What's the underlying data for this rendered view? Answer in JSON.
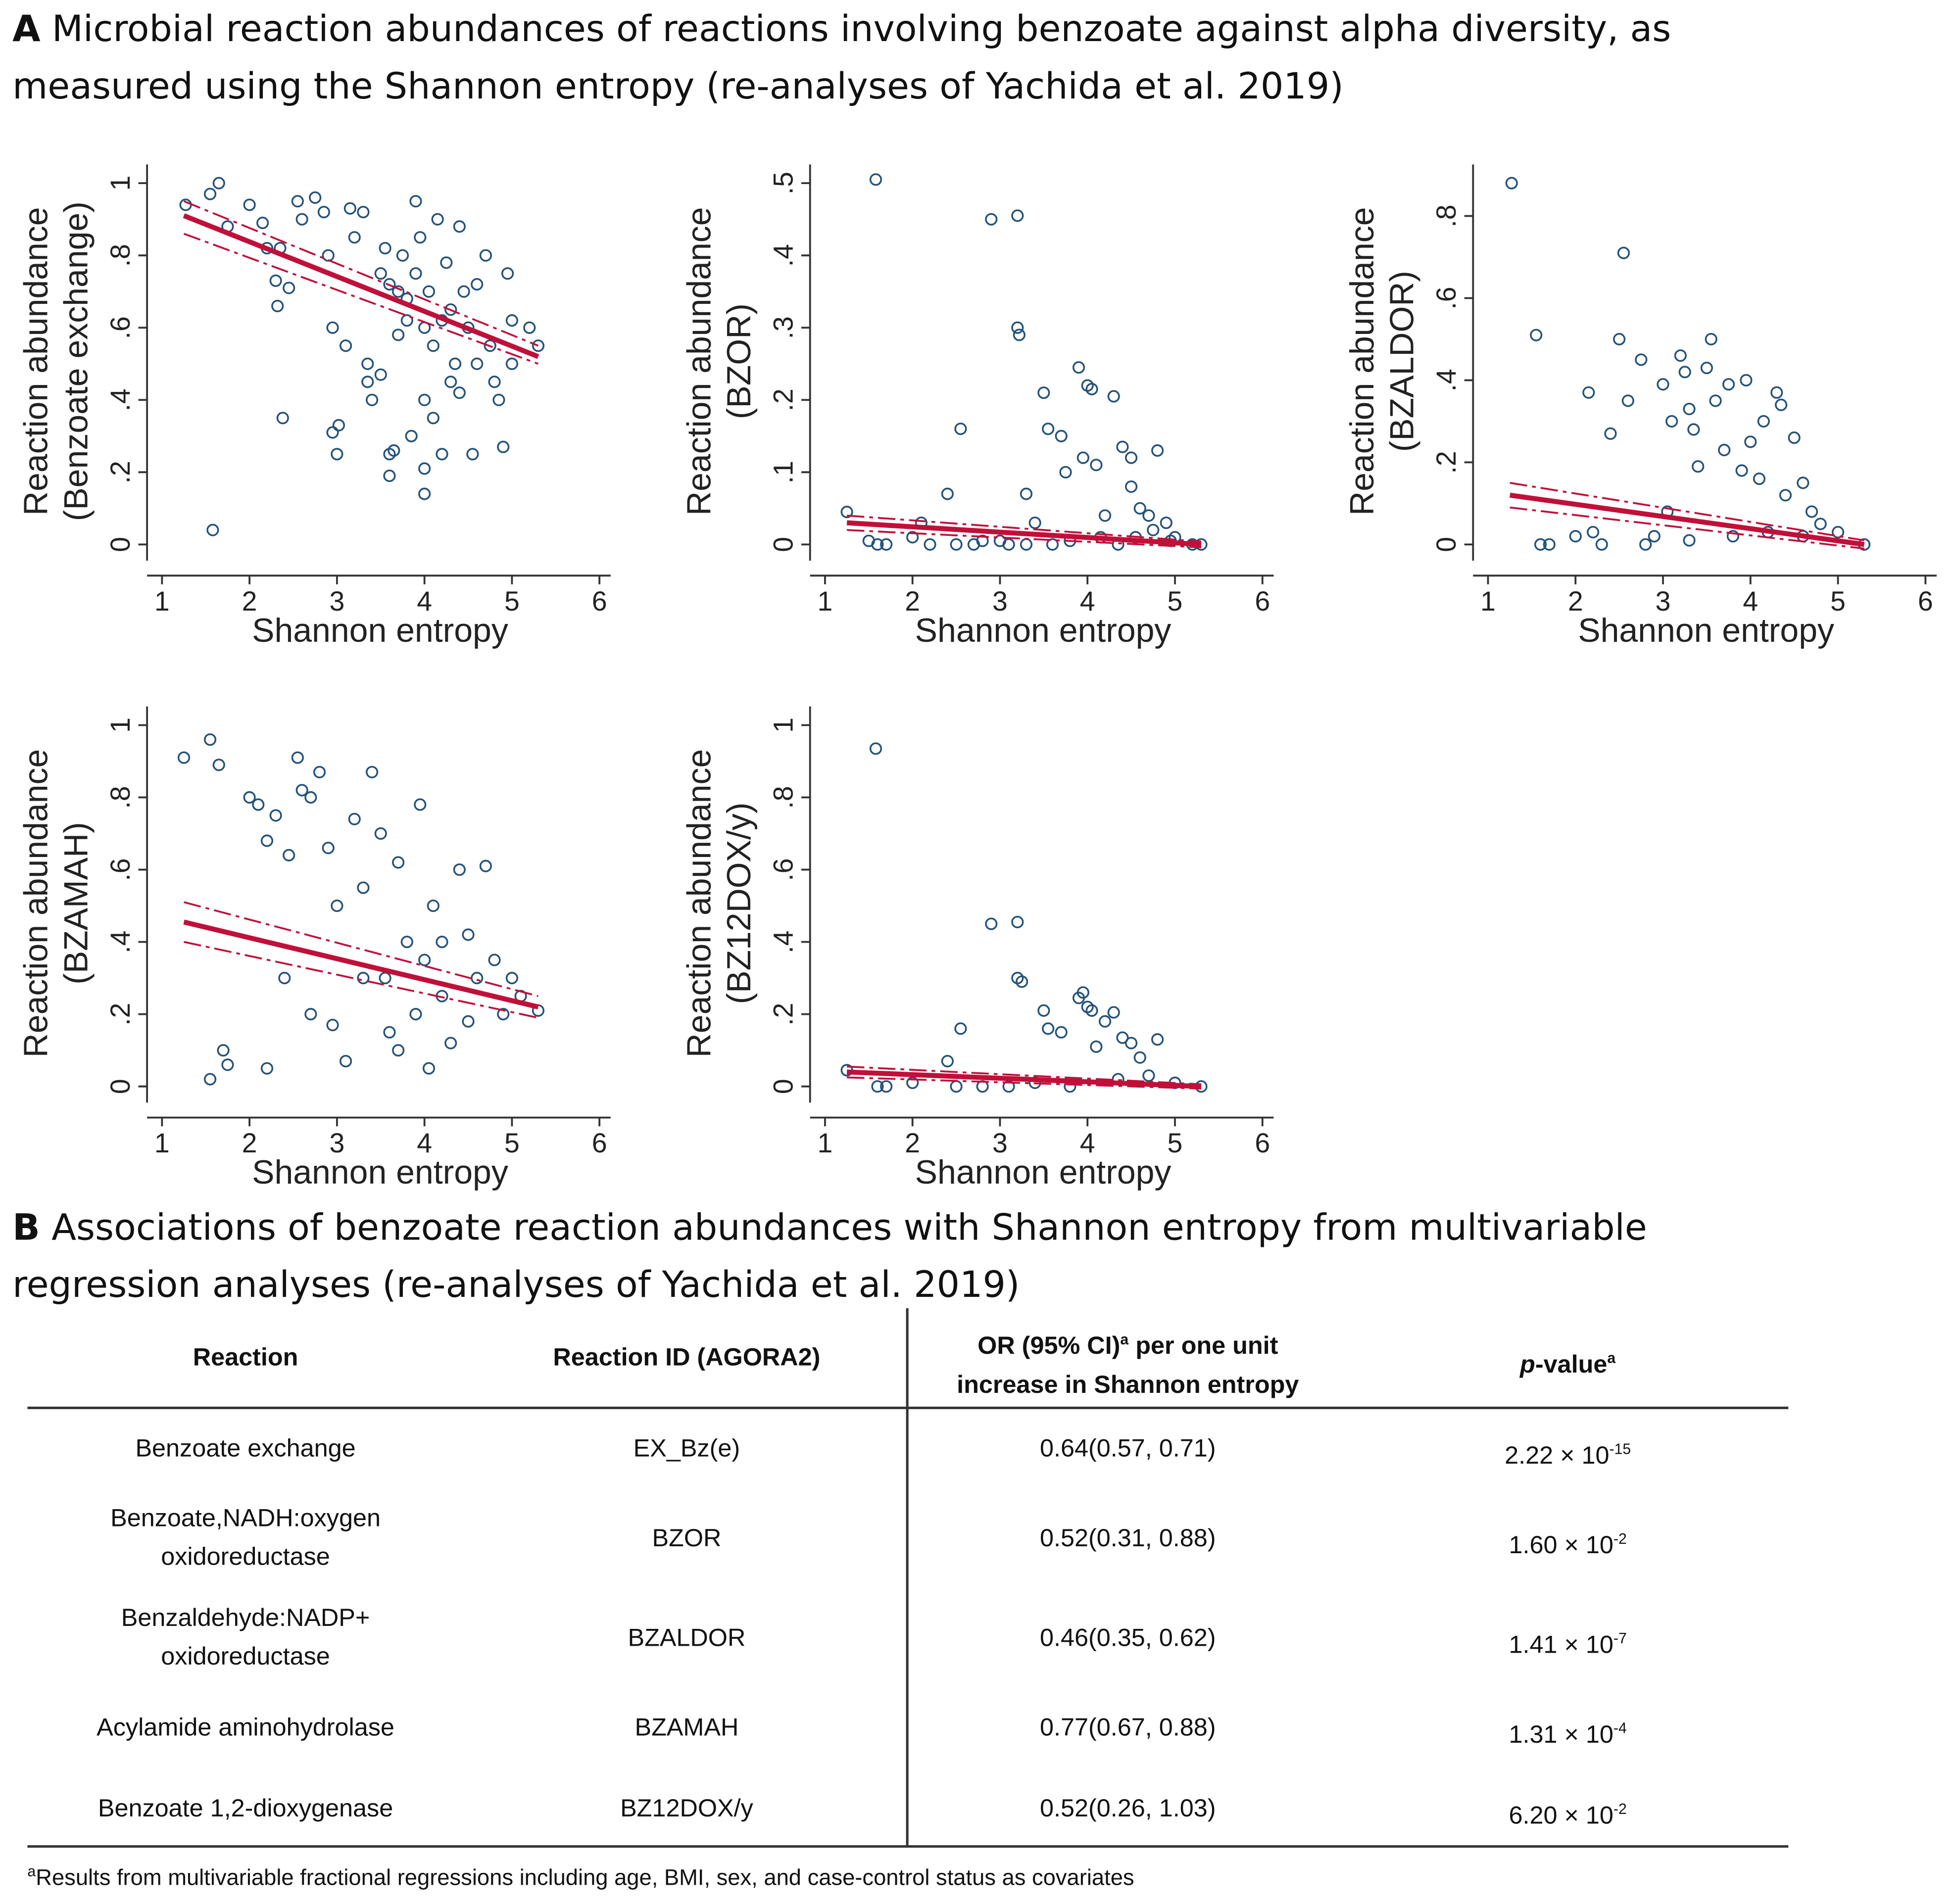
{
  "panel_a": {
    "letter": "A",
    "title_line1": "Microbial reaction abundances of reactions involving benzoate against alpha diversity, as",
    "title_line2": "measured using the Shannon entropy (re-analyses of Yachida et al. 2019)"
  },
  "panel_b": {
    "letter": "B",
    "title_line1": "Associations of benzoate reaction abundances with Shannon entropy from multivariable",
    "title_line2": "regression analyses (re-analyses of Yachida et al. 2019)"
  },
  "colors": {
    "points": "#24527a",
    "fit": "#c0103a"
  },
  "chart_data": [
    {
      "type": "scatter",
      "xlabel": "Shannon entropy",
      "ylabel1": "Reaction abundance",
      "ylabel2": "(Benzoate exchange)",
      "xlim": [
        1,
        6
      ],
      "xticks": [
        "1",
        "2",
        "3",
        "4",
        "5",
        "6"
      ],
      "ylim": [
        0,
        1
      ],
      "yticks": [
        0,
        0.2,
        0.4,
        0.6,
        0.8,
        1
      ],
      "ytick_labels": [
        "0",
        ".2",
        ".4",
        ".6",
        ".8",
        "1"
      ],
      "fit": {
        "x": [
          1.25,
          5.3
        ],
        "y": [
          0.91,
          0.52
        ],
        "ci_upper": [
          0.95,
          0.55
        ],
        "ci_lower": [
          0.86,
          0.5
        ]
      },
      "points": [
        [
          1.27,
          0.94
        ],
        [
          1.55,
          0.97
        ],
        [
          1.65,
          1.0
        ],
        [
          1.58,
          0.04
        ],
        [
          1.75,
          0.88
        ],
        [
          2.0,
          0.94
        ],
        [
          2.15,
          0.89
        ],
        [
          2.2,
          0.82
        ],
        [
          2.3,
          0.73
        ],
        [
          2.32,
          0.66
        ],
        [
          2.38,
          0.35
        ],
        [
          2.35,
          0.82
        ],
        [
          2.45,
          0.71
        ],
        [
          2.55,
          0.95
        ],
        [
          2.6,
          0.9
        ],
        [
          2.75,
          0.96
        ],
        [
          2.85,
          0.92
        ],
        [
          2.9,
          0.8
        ],
        [
          2.95,
          0.6
        ],
        [
          2.95,
          0.31
        ],
        [
          3.0,
          0.25
        ],
        [
          3.02,
          0.33
        ],
        [
          3.1,
          0.55
        ],
        [
          3.15,
          0.93
        ],
        [
          3.2,
          0.85
        ],
        [
          3.3,
          0.92
        ],
        [
          3.35,
          0.5
        ],
        [
          3.35,
          0.45
        ],
        [
          3.4,
          0.4
        ],
        [
          3.5,
          0.47
        ],
        [
          3.5,
          0.75
        ],
        [
          3.6,
          0.25
        ],
        [
          3.6,
          0.19
        ],
        [
          3.65,
          0.26
        ],
        [
          3.7,
          0.7
        ],
        [
          3.75,
          0.8
        ],
        [
          3.8,
          0.62
        ],
        [
          3.85,
          0.3
        ],
        [
          3.9,
          0.95
        ],
        [
          3.9,
          0.75
        ],
        [
          3.95,
          0.85
        ],
        [
          4.0,
          0.14
        ],
        [
          4.0,
          0.21
        ],
        [
          4.0,
          0.6
        ],
        [
          4.05,
          0.7
        ],
        [
          4.1,
          0.55
        ],
        [
          4.1,
          0.35
        ],
        [
          4.15,
          0.9
        ],
        [
          4.2,
          0.25
        ],
        [
          4.25,
          0.78
        ],
        [
          4.3,
          0.65
        ],
        [
          4.35,
          0.5
        ],
        [
          4.4,
          0.88
        ],
        [
          4.4,
          0.42
        ],
        [
          4.5,
          0.6
        ],
        [
          4.55,
          0.25
        ],
        [
          4.6,
          0.72
        ],
        [
          4.7,
          0.8
        ],
        [
          4.75,
          0.55
        ],
        [
          4.8,
          0.45
        ],
        [
          4.85,
          0.4
        ],
        [
          4.9,
          0.27
        ],
        [
          4.95,
          0.75
        ],
        [
          5.0,
          0.62
        ],
        [
          5.0,
          0.5
        ],
        [
          5.2,
          0.6
        ],
        [
          5.3,
          0.55
        ],
        [
          3.6,
          0.72
        ],
        [
          3.7,
          0.58
        ],
        [
          3.8,
          0.68
        ],
        [
          4.2,
          0.62
        ],
        [
          4.3,
          0.45
        ],
        [
          4.45,
          0.7
        ],
        [
          3.55,
          0.82
        ],
        [
          4.6,
          0.5
        ],
        [
          4.0,
          0.4
        ]
      ]
    },
    {
      "type": "scatter",
      "xlabel": "Shannon entropy",
      "ylabel1": "Reaction abundance",
      "ylabel2": "(BZOR)",
      "xlim": [
        1,
        6
      ],
      "xticks": [
        "1",
        "2",
        "3",
        "4",
        "5",
        "6"
      ],
      "ylim": [
        0,
        0.5
      ],
      "yticks": [
        0,
        0.1,
        0.2,
        0.3,
        0.4,
        0.5
      ],
      "ytick_labels": [
        "0",
        ".1",
        ".2",
        ".3",
        ".4",
        ".5"
      ],
      "fit": {
        "x": [
          1.25,
          5.3
        ],
        "y": [
          0.03,
          0.0
        ],
        "ci_upper": [
          0.04,
          0.004
        ],
        "ci_lower": [
          0.02,
          -0.004
        ]
      },
      "points": [
        [
          1.25,
          0.045
        ],
        [
          1.5,
          0.005
        ],
        [
          1.58,
          0.505
        ],
        [
          1.6,
          0
        ],
        [
          1.7,
          0
        ],
        [
          2.0,
          0.01
        ],
        [
          2.1,
          0.03
        ],
        [
          2.2,
          0
        ],
        [
          2.4,
          0.07
        ],
        [
          2.55,
          0.16
        ],
        [
          2.9,
          0.45
        ],
        [
          3.0,
          0.005
        ],
        [
          3.2,
          0.455
        ],
        [
          3.2,
          0.3
        ],
        [
          3.22,
          0.29
        ],
        [
          3.3,
          0.07
        ],
        [
          3.4,
          0.03
        ],
        [
          3.5,
          0.21
        ],
        [
          3.55,
          0.16
        ],
        [
          3.7,
          0.15
        ],
        [
          3.75,
          0.1
        ],
        [
          3.9,
          0.245
        ],
        [
          3.95,
          0.12
        ],
        [
          4.0,
          0.22
        ],
        [
          4.05,
          0.215
        ],
        [
          4.1,
          0.11
        ],
        [
          4.2,
          0.04
        ],
        [
          4.3,
          0.205
        ],
        [
          4.4,
          0.135
        ],
        [
          4.5,
          0.12
        ],
        [
          4.5,
          0.08
        ],
        [
          4.6,
          0.05
        ],
        [
          4.7,
          0.04
        ],
        [
          4.8,
          0.13
        ],
        [
          4.9,
          0.03
        ],
        [
          5.0,
          0.01
        ],
        [
          5.2,
          0
        ],
        [
          5.3,
          0
        ],
        [
          2.5,
          0
        ],
        [
          2.7,
          0
        ],
        [
          2.8,
          0.005
        ],
        [
          3.1,
          0
        ],
        [
          3.3,
          0
        ],
        [
          3.6,
          0
        ],
        [
          3.8,
          0.005
        ],
        [
          4.15,
          0.01
        ],
        [
          4.35,
          0
        ],
        [
          4.55,
          0.01
        ],
        [
          4.75,
          0.02
        ],
        [
          4.95,
          0.005
        ]
      ]
    },
    {
      "type": "scatter",
      "xlabel": "Shannon entropy",
      "ylabel1": "Reaction abundance",
      "ylabel2": "(BZALDOR)",
      "xlim": [
        1,
        6
      ],
      "xticks": [
        "1",
        "2",
        "3",
        "4",
        "5",
        "6"
      ],
      "ylim": [
        0,
        0.88
      ],
      "yticks": [
        0,
        0.2,
        0.4,
        0.6,
        0.8
      ],
      "ytick_labels": [
        "0",
        ".2",
        ".4",
        ".6",
        ".8"
      ],
      "fit": {
        "x": [
          1.25,
          5.3
        ],
        "y": [
          0.12,
          0.0
        ],
        "ci_upper": [
          0.15,
          0.01
        ],
        "ci_lower": [
          0.09,
          -0.01
        ]
      },
      "points": [
        [
          1.27,
          0.88
        ],
        [
          1.55,
          0.51
        ],
        [
          1.6,
          0
        ],
        [
          1.7,
          0
        ],
        [
          2.0,
          0.02
        ],
        [
          2.15,
          0.37
        ],
        [
          2.2,
          0.03
        ],
        [
          2.4,
          0.27
        ],
        [
          2.5,
          0.5
        ],
        [
          2.55,
          0.71
        ],
        [
          2.6,
          0.35
        ],
        [
          2.75,
          0.45
        ],
        [
          2.9,
          0.02
        ],
        [
          3.0,
          0.39
        ],
        [
          3.05,
          0.08
        ],
        [
          3.1,
          0.3
        ],
        [
          3.2,
          0.46
        ],
        [
          3.25,
          0.42
        ],
        [
          3.3,
          0.33
        ],
        [
          3.35,
          0.28
        ],
        [
          3.4,
          0.19
        ],
        [
          3.5,
          0.43
        ],
        [
          3.55,
          0.5
        ],
        [
          3.6,
          0.35
        ],
        [
          3.7,
          0.23
        ],
        [
          3.75,
          0.39
        ],
        [
          3.9,
          0.18
        ],
        [
          3.95,
          0.4
        ],
        [
          4.0,
          0.25
        ],
        [
          4.1,
          0.16
        ],
        [
          4.15,
          0.3
        ],
        [
          4.3,
          0.37
        ],
        [
          4.35,
          0.34
        ],
        [
          4.4,
          0.12
        ],
        [
          4.5,
          0.26
        ],
        [
          4.6,
          0.15
        ],
        [
          4.7,
          0.08
        ],
        [
          4.8,
          0.05
        ],
        [
          5.0,
          0.03
        ],
        [
          5.3,
          0
        ],
        [
          2.3,
          0
        ],
        [
          2.8,
          0
        ],
        [
          3.3,
          0.01
        ],
        [
          3.8,
          0.02
        ],
        [
          4.2,
          0.03
        ],
        [
          4.6,
          0.02
        ]
      ]
    },
    {
      "type": "scatter",
      "xlabel": "Shannon entropy",
      "ylabel1": "Reaction abundance",
      "ylabel2": "(BZAMAH)",
      "xlim": [
        1,
        6
      ],
      "xticks": [
        "1",
        "2",
        "3",
        "4",
        "5",
        "6"
      ],
      "ylim": [
        0,
        1
      ],
      "yticks": [
        0,
        0.2,
        0.4,
        0.6,
        0.8,
        1
      ],
      "ytick_labels": [
        "0",
        ".2",
        ".4",
        ".6",
        ".8",
        "1"
      ],
      "fit": {
        "x": [
          1.25,
          5.3
        ],
        "y": [
          0.455,
          0.22
        ],
        "ci_upper": [
          0.51,
          0.25
        ],
        "ci_lower": [
          0.4,
          0.19
        ]
      },
      "points": [
        [
          1.25,
          0.91
        ],
        [
          1.55,
          0.96
        ],
        [
          1.65,
          0.89
        ],
        [
          1.55,
          0.02
        ],
        [
          1.7,
          0.1
        ],
        [
          1.75,
          0.06
        ],
        [
          2.0,
          0.8
        ],
        [
          2.1,
          0.78
        ],
        [
          2.2,
          0.68
        ],
        [
          2.2,
          0.05
        ],
        [
          2.3,
          0.75
        ],
        [
          2.4,
          0.3
        ],
        [
          2.45,
          0.64
        ],
        [
          2.55,
          0.91
        ],
        [
          2.6,
          0.82
        ],
        [
          2.7,
          0.8
        ],
        [
          2.8,
          0.87
        ],
        [
          2.9,
          0.66
        ],
        [
          2.95,
          0.17
        ],
        [
          3.0,
          0.5
        ],
        [
          3.1,
          0.07
        ],
        [
          3.2,
          0.74
        ],
        [
          3.3,
          0.55
        ],
        [
          3.4,
          0.87
        ],
        [
          3.5,
          0.7
        ],
        [
          3.55,
          0.3
        ],
        [
          3.6,
          0.15
        ],
        [
          3.7,
          0.62
        ],
        [
          3.8,
          0.4
        ],
        [
          3.9,
          0.2
        ],
        [
          3.95,
          0.78
        ],
        [
          4.0,
          0.35
        ],
        [
          4.05,
          0.05
        ],
        [
          4.1,
          0.5
        ],
        [
          4.2,
          0.25
        ],
        [
          4.3,
          0.12
        ],
        [
          4.4,
          0.6
        ],
        [
          4.5,
          0.42
        ],
        [
          4.6,
          0.3
        ],
        [
          4.7,
          0.61
        ],
        [
          4.8,
          0.35
        ],
        [
          4.9,
          0.2
        ],
        [
          5.0,
          0.3
        ],
        [
          5.1,
          0.25
        ],
        [
          5.3,
          0.21
        ],
        [
          3.7,
          0.1
        ],
        [
          4.2,
          0.4
        ],
        [
          4.5,
          0.18
        ],
        [
          3.3,
          0.3
        ],
        [
          2.7,
          0.2
        ]
      ]
    },
    {
      "type": "scatter",
      "xlabel": "Shannon entropy",
      "ylabel1": "Reaction abundance",
      "ylabel2": "(BZ12DOX/y)",
      "xlim": [
        1,
        6
      ],
      "xticks": [
        "1",
        "2",
        "3",
        "4",
        "5",
        "6"
      ],
      "ylim": [
        0,
        1
      ],
      "yticks": [
        0,
        0.2,
        0.4,
        0.6,
        0.8,
        1
      ],
      "ytick_labels": [
        "0",
        ".2",
        ".4",
        ".6",
        ".8",
        "1"
      ],
      "fit": {
        "x": [
          1.25,
          5.3
        ],
        "y": [
          0.04,
          0.0
        ],
        "ci_upper": [
          0.055,
          0.006
        ],
        "ci_lower": [
          0.025,
          -0.006
        ]
      },
      "points": [
        [
          1.25,
          0.045
        ],
        [
          1.58,
          0.935
        ],
        [
          1.6,
          0
        ],
        [
          1.7,
          0
        ],
        [
          2.0,
          0.01
        ],
        [
          2.4,
          0.07
        ],
        [
          2.55,
          0.16
        ],
        [
          2.9,
          0.45
        ],
        [
          3.2,
          0.455
        ],
        [
          3.2,
          0.3
        ],
        [
          3.25,
          0.29
        ],
        [
          3.5,
          0.21
        ],
        [
          3.55,
          0.16
        ],
        [
          3.7,
          0.15
        ],
        [
          3.9,
          0.245
        ],
        [
          3.95,
          0.26
        ],
        [
          4.0,
          0.22
        ],
        [
          4.05,
          0.21
        ],
        [
          4.1,
          0.11
        ],
        [
          4.2,
          0.18
        ],
        [
          4.3,
          0.205
        ],
        [
          4.4,
          0.135
        ],
        [
          4.5,
          0.12
        ],
        [
          4.6,
          0.08
        ],
        [
          4.8,
          0.13
        ],
        [
          5.0,
          0.01
        ],
        [
          5.3,
          0
        ],
        [
          2.5,
          0
        ],
        [
          2.8,
          0
        ],
        [
          3.1,
          0
        ],
        [
          3.4,
          0.01
        ],
        [
          3.8,
          0
        ],
        [
          4.35,
          0.02
        ],
        [
          4.7,
          0.03
        ]
      ]
    }
  ],
  "table": {
    "headers": {
      "reaction": "Reaction",
      "reaction_id": "Reaction ID (AGORA2)",
      "or_line1": "OR (95% CI)",
      "or_sup": "a",
      "or_line1b": " per one unit",
      "or_line2": "increase in Shannon entropy",
      "p_italic": "p",
      "p_rest": "-value",
      "p_sup": "a"
    },
    "rows": [
      {
        "reaction_l1": "Benzoate exchange",
        "reaction_l2": "",
        "id": "EX_Bz(e)",
        "or": "0.64(0.57, 0.71)",
        "p_base": "2.22 × 10",
        "p_exp": "-15"
      },
      {
        "reaction_l1": "Benzoate,NADH:oxygen",
        "reaction_l2": "oxidoreductase",
        "id": "BZOR",
        "or": "0.52(0.31, 0.88)",
        "p_base": "1.60 × 10",
        "p_exp": "-2"
      },
      {
        "reaction_l1": "Benzaldehyde:NADP+",
        "reaction_l2": "oxidoreductase",
        "id": "BZALDOR",
        "or": "0.46(0.35, 0.62)",
        "p_base": "1.41 × 10",
        "p_exp": "-7"
      },
      {
        "reaction_l1": "Acylamide aminohydrolase",
        "reaction_l2": "",
        "id": "BZAMAH",
        "or": "0.77(0.67, 0.88)",
        "p_base": "1.31 × 10",
        "p_exp": "-4"
      },
      {
        "reaction_l1": "Benzoate 1,2-dioxygenase",
        "reaction_l2": "",
        "id": "BZ12DOX/y",
        "or": "0.52(0.26, 1.03)",
        "p_base": "6.20  × 10",
        "p_exp": "-2"
      }
    ],
    "footnote_sup": "a",
    "footnote": "Results from multivariable fractional regressions including age, BMI, sex, and case-control status as covariates"
  }
}
